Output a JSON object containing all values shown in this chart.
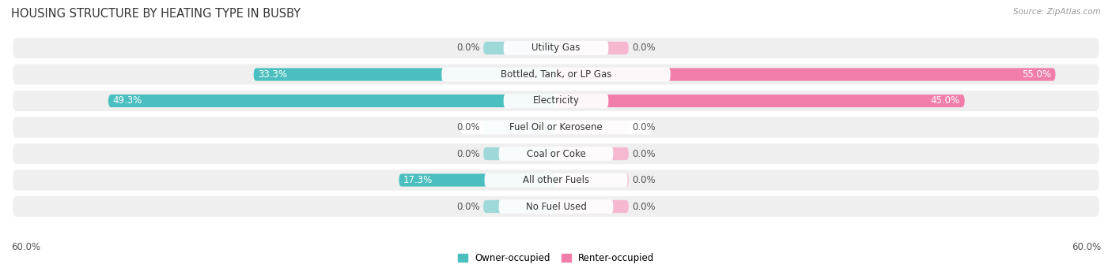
{
  "title": "HOUSING STRUCTURE BY HEATING TYPE IN BUSBY",
  "source": "Source: ZipAtlas.com",
  "categories": [
    "Utility Gas",
    "Bottled, Tank, or LP Gas",
    "Electricity",
    "Fuel Oil or Kerosene",
    "Coal or Coke",
    "All other Fuels",
    "No Fuel Used"
  ],
  "owner_values": [
    0.0,
    33.3,
    49.3,
    0.0,
    0.0,
    17.3,
    0.0
  ],
  "renter_values": [
    0.0,
    55.0,
    45.0,
    0.0,
    0.0,
    0.0,
    0.0
  ],
  "owner_color": "#4bbfbf",
  "renter_color": "#f07daa",
  "owner_color_light": "#9fd8d8",
  "renter_color_light": "#f5b8d0",
  "row_bg_color": "#efefef",
  "axis_max": 60.0,
  "placeholder_pct": 8.0,
  "label_fontsize": 8.5,
  "title_fontsize": 10.5,
  "source_fontsize": 7.5,
  "cat_label_fontsize": 8.5
}
